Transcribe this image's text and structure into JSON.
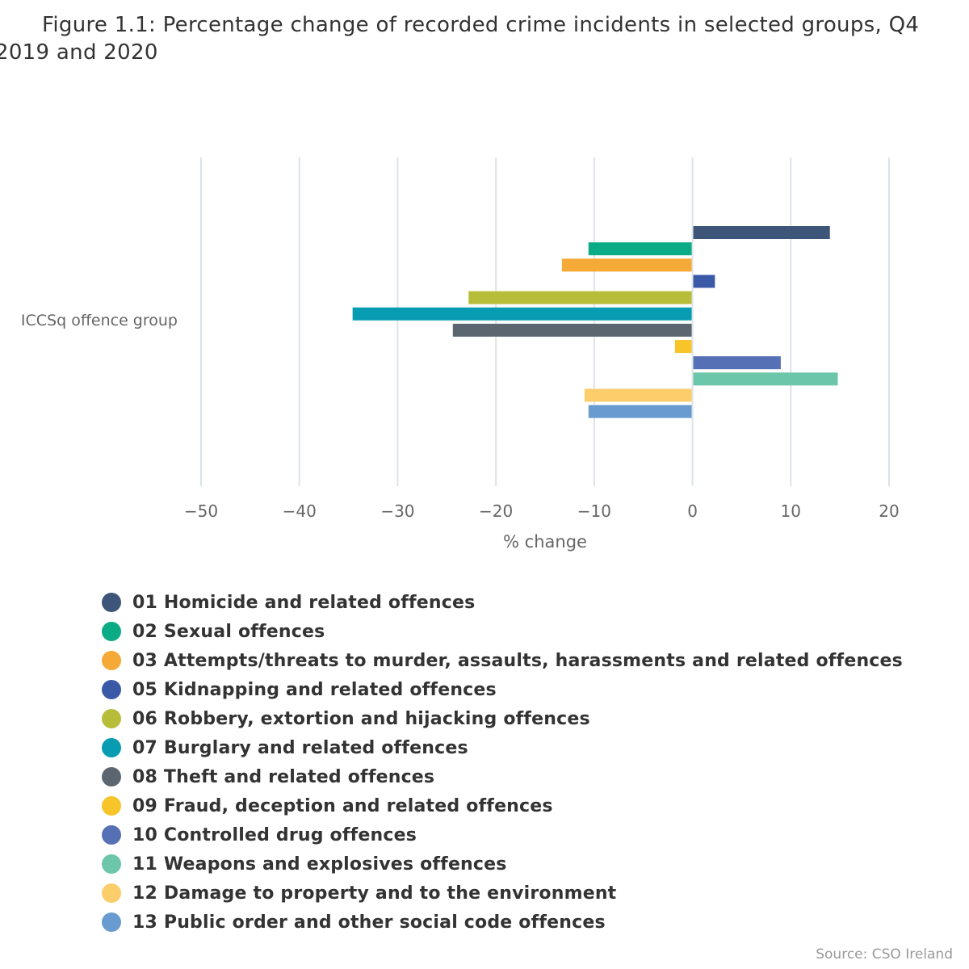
{
  "chart_data": {
    "type": "bar",
    "orientation": "horizontal",
    "title": "Figure 1.1: Percentage change of recorded crime incidents in selected groups, Q4 2019 and 2020",
    "xlabel": "% change",
    "ylabel": "",
    "category": "ICCSq offence group",
    "xlim": [
      -50,
      20
    ],
    "xticks": [
      -50,
      -40,
      -30,
      -20,
      -10,
      0,
      10,
      20
    ],
    "xtick_labels": [
      "−50",
      "−40",
      "−30",
      "−20",
      "−10",
      "0",
      "10",
      "20"
    ],
    "grid": true,
    "legend_position": "bottom",
    "series": [
      {
        "name": "01 Homicide and related offences",
        "value": 13.9,
        "color": "#3d5579"
      },
      {
        "name": "02 Sexual offences",
        "value": -10.5,
        "color": "#0aab85"
      },
      {
        "name": "03 Attempts/threats to murder, assaults, harassments and related offences",
        "value": -13.2,
        "color": "#f5a936"
      },
      {
        "name": "05 Kidnapping and related offences",
        "value": 2.2,
        "color": "#3a59a6"
      },
      {
        "name": "06 Robbery, extortion and hijacking offences",
        "value": -22.7,
        "color": "#b7bd39"
      },
      {
        "name": "07 Burglary and related offences",
        "value": -34.5,
        "color": "#079cb2"
      },
      {
        "name": "08 Theft and related offences",
        "value": -24.3,
        "color": "#5b6670"
      },
      {
        "name": "09 Fraud, deception and related offences",
        "value": -1.7,
        "color": "#f7c42a"
      },
      {
        "name": "10 Controlled drug offences",
        "value": 8.9,
        "color": "#5670b5"
      },
      {
        "name": "11 Weapons and explosives offences",
        "value": 14.7,
        "color": "#6bc6aa"
      },
      {
        "name": "12 Damage to property and to the environment",
        "value": -10.9,
        "color": "#fbcd6b"
      },
      {
        "name": "13 Public order and other social code offences",
        "value": -10.5,
        "color": "#6a9bd0"
      }
    ]
  },
  "source": "Source: CSO Ireland"
}
